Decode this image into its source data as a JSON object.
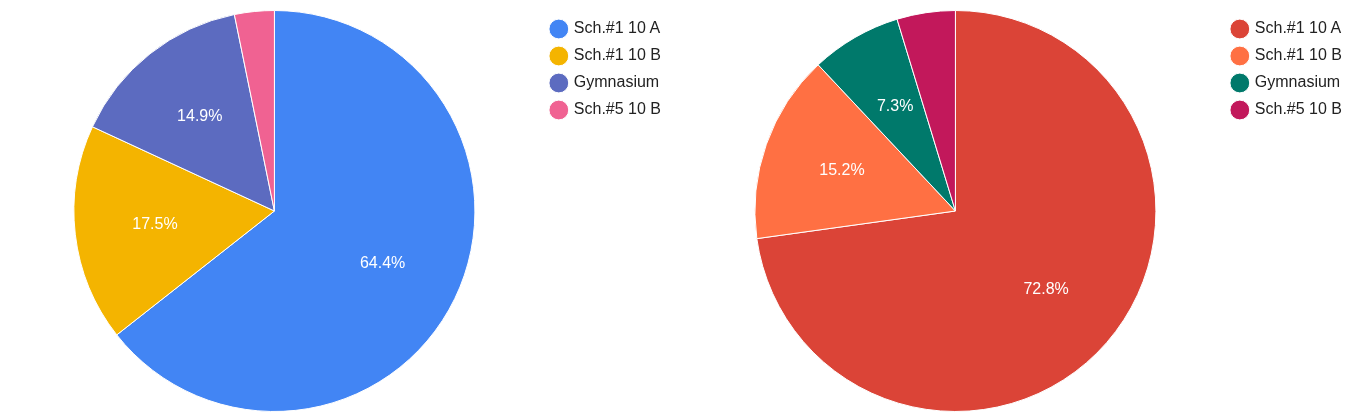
{
  "chart_data": [
    {
      "type": "pie",
      "categories": [
        "Sch.#1 10 A",
        "Sch.#1 10 B",
        "Gymnasium",
        "Sch.#5 10 B"
      ],
      "values": [
        64.4,
        17.5,
        14.9,
        3.2
      ],
      "colors": [
        "#4285f4",
        "#f4b400",
        "#5c6bc0",
        "#f06292"
      ],
      "value_labels": [
        "64.4%",
        "17.5%",
        "14.9%",
        null
      ],
      "legend": "top right"
    },
    {
      "type": "pie",
      "categories": [
        "Sch.#1 10 A",
        "Sch.#1 10 B",
        "Gymnasium",
        "Sch.#5 10 B"
      ],
      "values": [
        72.8,
        15.2,
        7.3,
        4.7
      ],
      "colors": [
        "#db4437",
        "#ff7043",
        "#00796b",
        "#c2185b"
      ],
      "value_labels": [
        "72.8%",
        "15.2%",
        "7.3%",
        null
      ],
      "legend": "top right"
    }
  ]
}
